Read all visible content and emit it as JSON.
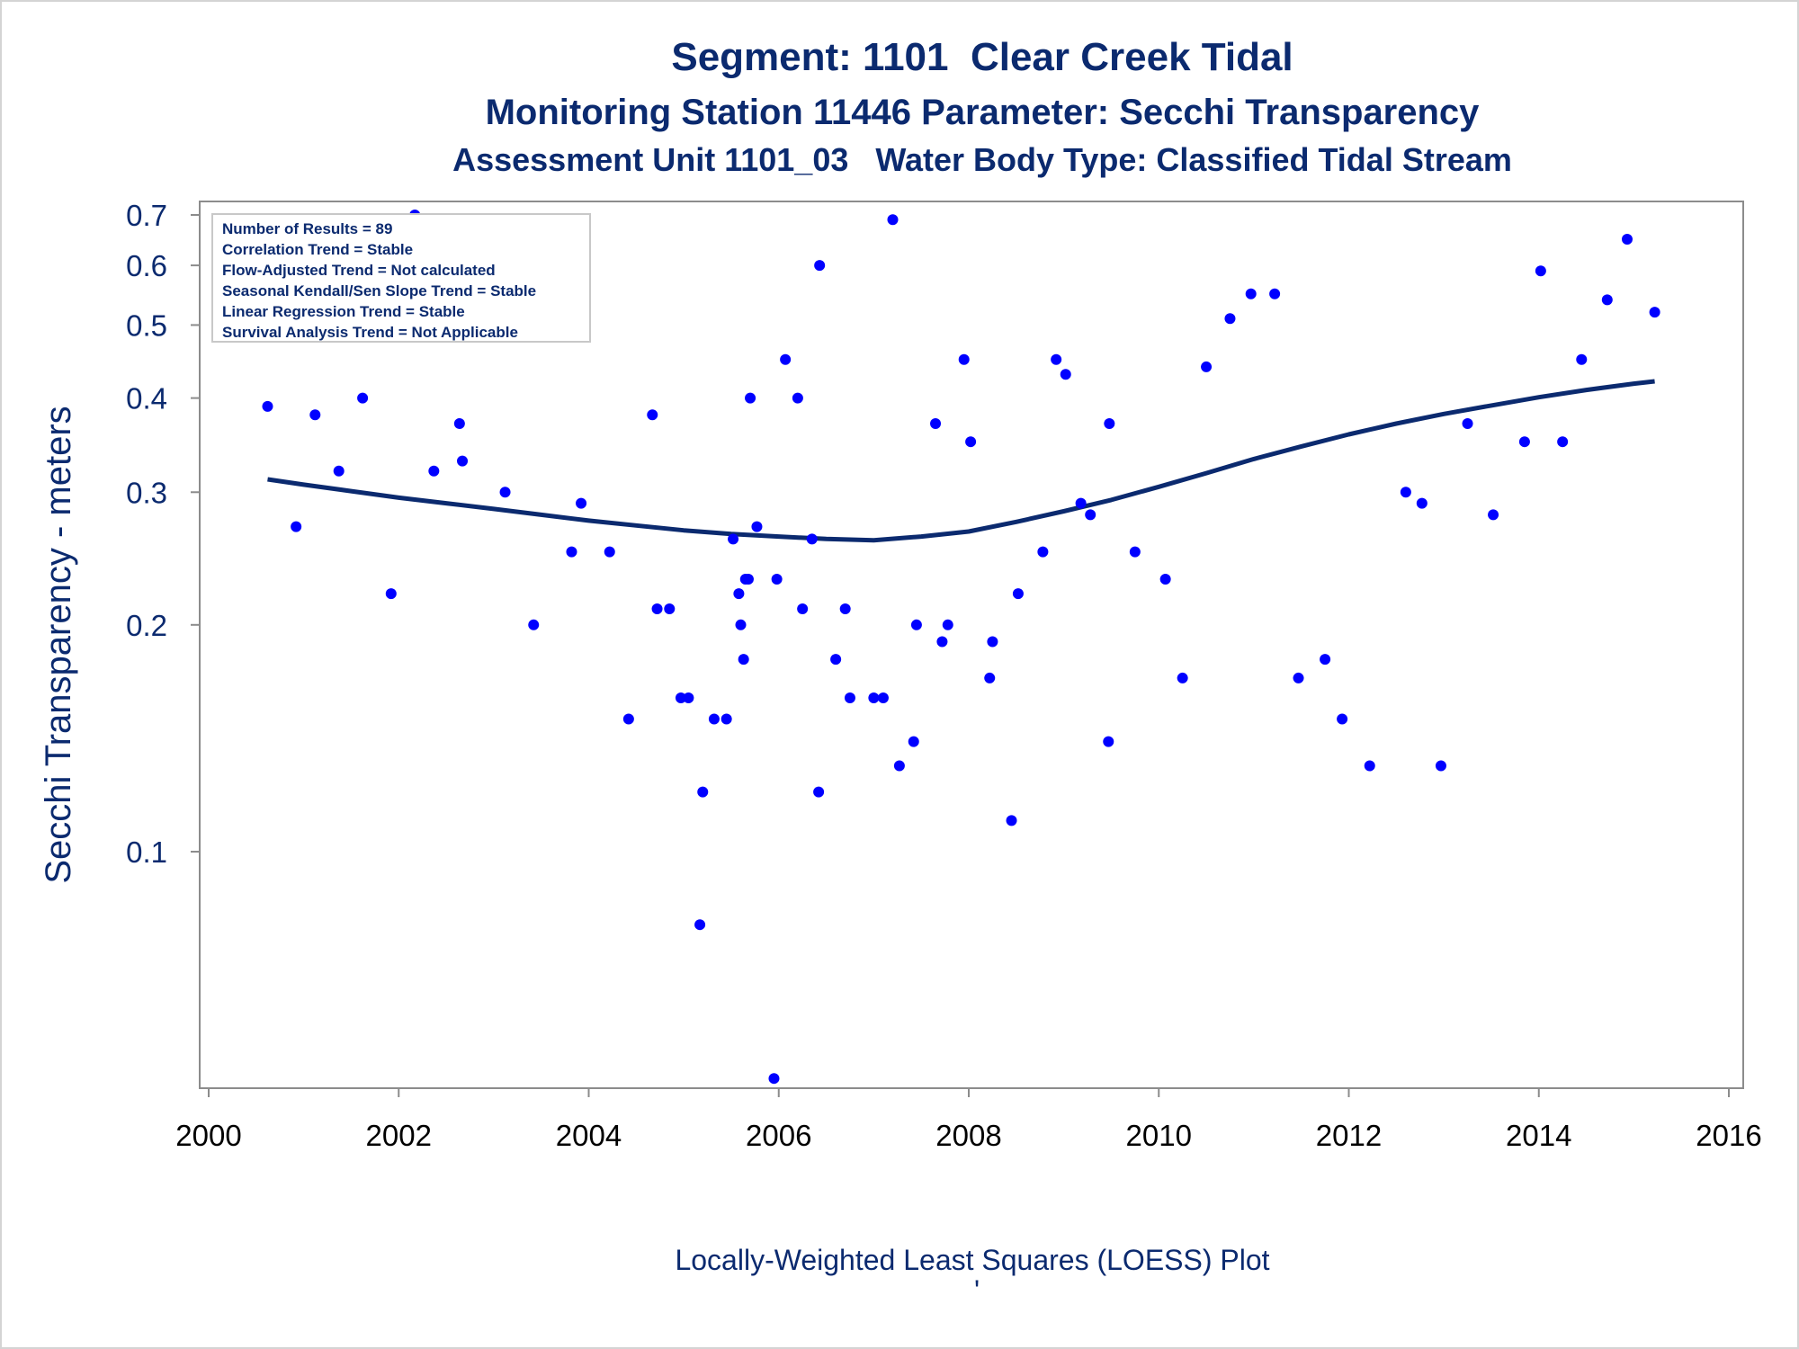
{
  "chart_data": {
    "type": "scatter",
    "title": "Segment: 1101  Clear Creek Tidal",
    "subtitle": "Monitoring Station 11446 Parameter: Secchi Transparency",
    "subtitle2": "Assessment Unit 1101_03   Water Body Type: Classified Tidal Stream",
    "ylabel": "Secchi Transparency - meters",
    "footnote": "Locally-Weighted Least Squares (LOESS) Plot",
    "footnote_mark": "'",
    "y_scale": "log",
    "xlim": [
      2000,
      2016
    ],
    "ylim": [
      0.05,
      0.72
    ],
    "x_ticks": [
      2000,
      2002,
      2004,
      2006,
      2008,
      2010,
      2012,
      2014,
      2016
    ],
    "x_tick_labels": [
      "2000",
      "2002",
      "2004",
      "2006",
      "2008",
      "2010",
      "2012",
      "2014",
      "2016"
    ],
    "y_ticks": [
      0.1,
      0.2,
      0.3,
      0.4,
      0.5,
      0.6,
      0.7
    ],
    "y_tick_labels": [
      "0.1",
      "0.2",
      "0.3",
      "0.4",
      "0.5",
      "0.6",
      "0.7"
    ],
    "grid": false,
    "stats_box": {
      "location": "top-left",
      "lines": [
        "Number of Results = 89",
        "Correlation Trend = Stable",
        "Flow-Adjusted Trend = Not calculated",
        "Seasonal Kendall/Sen Slope Trend = Stable",
        "Linear Regression Trend = Stable",
        "Survival Analysis Trend = Not Applicable"
      ]
    },
    "colors": {
      "points": "#0000ff",
      "loess": "#0b2a6f",
      "text": "#0b2a6f",
      "axis": "#8c8c8c"
    },
    "series": [
      {
        "type": "scatter",
        "points": [
          [
            2000.62,
            0.39
          ],
          [
            2000.92,
            0.27
          ],
          [
            2001.12,
            0.38
          ],
          [
            2001.37,
            0.32
          ],
          [
            2001.62,
            0.4
          ],
          [
            2001.92,
            0.22
          ],
          [
            2002.17,
            0.7
          ],
          [
            2002.37,
            0.32
          ],
          [
            2002.64,
            0.37
          ],
          [
            2002.67,
            0.33
          ],
          [
            2003.12,
            0.3
          ],
          [
            2003.42,
            0.2
          ],
          [
            2003.82,
            0.25
          ],
          [
            2003.92,
            0.29
          ],
          [
            2004.22,
            0.25
          ],
          [
            2004.42,
            0.15
          ],
          [
            2004.67,
            0.38
          ],
          [
            2004.72,
            0.21
          ],
          [
            2004.85,
            0.21
          ],
          [
            2004.97,
            0.16
          ],
          [
            2005.05,
            0.16
          ],
          [
            2005.17,
            0.08
          ],
          [
            2005.2,
            0.12
          ],
          [
            2005.32,
            0.15
          ],
          [
            2005.45,
            0.15
          ],
          [
            2005.52,
            0.26
          ],
          [
            2005.58,
            0.22
          ],
          [
            2005.6,
            0.2
          ],
          [
            2005.63,
            0.18
          ],
          [
            2005.65,
            0.23
          ],
          [
            2005.68,
            0.23
          ],
          [
            2005.7,
            0.4
          ],
          [
            2005.77,
            0.27
          ],
          [
            2005.95,
            0.05
          ],
          [
            2005.98,
            0.23
          ],
          [
            2006.07,
            0.45
          ],
          [
            2006.2,
            0.4
          ],
          [
            2006.25,
            0.21
          ],
          [
            2006.35,
            0.26
          ],
          [
            2006.42,
            0.12
          ],
          [
            2006.43,
            0.6
          ],
          [
            2006.6,
            0.18
          ],
          [
            2006.7,
            0.21
          ],
          [
            2006.75,
            0.16
          ],
          [
            2007.0,
            0.16
          ],
          [
            2007.1,
            0.16
          ],
          [
            2007.2,
            0.69
          ],
          [
            2007.27,
            0.13
          ],
          [
            2007.42,
            0.14
          ],
          [
            2007.45,
            0.2
          ],
          [
            2007.65,
            0.37
          ],
          [
            2007.72,
            0.19
          ],
          [
            2007.78,
            0.2
          ],
          [
            2007.95,
            0.45
          ],
          [
            2008.02,
            0.35
          ],
          [
            2008.22,
            0.17
          ],
          [
            2008.25,
            0.19
          ],
          [
            2008.45,
            0.11
          ],
          [
            2008.52,
            0.22
          ],
          [
            2008.78,
            0.25
          ],
          [
            2008.92,
            0.45
          ],
          [
            2009.02,
            0.43
          ],
          [
            2009.18,
            0.29
          ],
          [
            2009.28,
            0.28
          ],
          [
            2009.47,
            0.14
          ],
          [
            2009.48,
            0.37
          ],
          [
            2009.75,
            0.25
          ],
          [
            2010.07,
            0.23
          ],
          [
            2010.25,
            0.17
          ],
          [
            2010.5,
            0.44
          ],
          [
            2010.75,
            0.51
          ],
          [
            2010.97,
            0.55
          ],
          [
            2011.22,
            0.55
          ],
          [
            2011.47,
            0.17
          ],
          [
            2011.75,
            0.18
          ],
          [
            2011.93,
            0.15
          ],
          [
            2012.22,
            0.13
          ],
          [
            2012.6,
            0.3
          ],
          [
            2012.77,
            0.29
          ],
          [
            2012.97,
            0.13
          ],
          [
            2013.25,
            0.37
          ],
          [
            2013.52,
            0.28
          ],
          [
            2013.85,
            0.35
          ],
          [
            2014.02,
            0.59
          ],
          [
            2014.25,
            0.35
          ],
          [
            2014.45,
            0.45
          ],
          [
            2014.72,
            0.54
          ],
          [
            2014.93,
            0.65
          ],
          [
            2015.22,
            0.52
          ]
        ]
      },
      {
        "type": "line",
        "label": "LOESS",
        "points": [
          [
            2000.62,
            0.312
          ],
          [
            2001.0,
            0.307
          ],
          [
            2001.5,
            0.301
          ],
          [
            2002.0,
            0.295
          ],
          [
            2002.5,
            0.29
          ],
          [
            2003.0,
            0.285
          ],
          [
            2003.5,
            0.28
          ],
          [
            2004.0,
            0.275
          ],
          [
            2004.5,
            0.271
          ],
          [
            2005.0,
            0.267
          ],
          [
            2005.5,
            0.264
          ],
          [
            2006.0,
            0.262
          ],
          [
            2006.5,
            0.26
          ],
          [
            2007.0,
            0.259
          ],
          [
            2007.5,
            0.262
          ],
          [
            2008.0,
            0.266
          ],
          [
            2008.5,
            0.274
          ],
          [
            2009.0,
            0.283
          ],
          [
            2009.5,
            0.293
          ],
          [
            2010.0,
            0.305
          ],
          [
            2010.5,
            0.318
          ],
          [
            2011.0,
            0.332
          ],
          [
            2011.5,
            0.345
          ],
          [
            2012.0,
            0.358
          ],
          [
            2012.5,
            0.37
          ],
          [
            2013.0,
            0.381
          ],
          [
            2013.5,
            0.391
          ],
          [
            2014.0,
            0.401
          ],
          [
            2014.5,
            0.41
          ],
          [
            2015.0,
            0.418
          ],
          [
            2015.22,
            0.421
          ]
        ]
      }
    ]
  }
}
